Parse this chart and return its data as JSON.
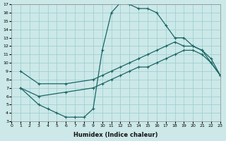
{
  "xlabel": "Humidex (Indice chaleur)",
  "bg_color": "#cce8e8",
  "grid_color": "#99cccc",
  "line_color": "#1a6666",
  "ylim": [
    3,
    17
  ],
  "xlim": [
    0,
    23
  ],
  "yticks": [
    3,
    4,
    5,
    6,
    7,
    8,
    9,
    10,
    11,
    12,
    13,
    14,
    15,
    16,
    17
  ],
  "xticks": [
    0,
    1,
    2,
    3,
    4,
    5,
    6,
    7,
    8,
    9,
    10,
    11,
    12,
    13,
    14,
    15,
    16,
    17,
    18,
    19,
    20,
    21,
    22,
    23
  ],
  "curve1_x": [
    1,
    3,
    6,
    9,
    10,
    11,
    12,
    13,
    14,
    15,
    16,
    17,
    18,
    19,
    20,
    21,
    22,
    23
  ],
  "curve1_y": [
    9,
    7.5,
    7.5,
    8.0,
    8.5,
    9.0,
    9.5,
    10.0,
    10.5,
    11.0,
    11.5,
    12.0,
    12.5,
    12.0,
    12.0,
    11.5,
    10.5,
    8.5
  ],
  "curve2_x": [
    1,
    3,
    6,
    9,
    10,
    11,
    12,
    13,
    14,
    15,
    16,
    17,
    18,
    19,
    20,
    21,
    22,
    23
  ],
  "curve2_y": [
    7,
    6,
    6.5,
    7.0,
    7.5,
    8.0,
    8.5,
    9.0,
    9.5,
    9.5,
    10.0,
    10.5,
    11.0,
    11.5,
    11.5,
    11.0,
    10.0,
    8.5
  ],
  "curve3_x": [
    1,
    3,
    4,
    5,
    6,
    7,
    8,
    9,
    10,
    11,
    12,
    13,
    14,
    15,
    16,
    17,
    18,
    19,
    20,
    21,
    22,
    23
  ],
  "curve3_y": [
    7,
    5.0,
    4.5,
    4.0,
    3.5,
    3.5,
    3.5,
    4.5,
    11.5,
    16.0,
    17.2,
    17.0,
    16.5,
    16.5,
    16.0,
    14.5,
    13.0,
    13.0,
    12.0,
    11.5,
    10.0,
    8.5
  ]
}
